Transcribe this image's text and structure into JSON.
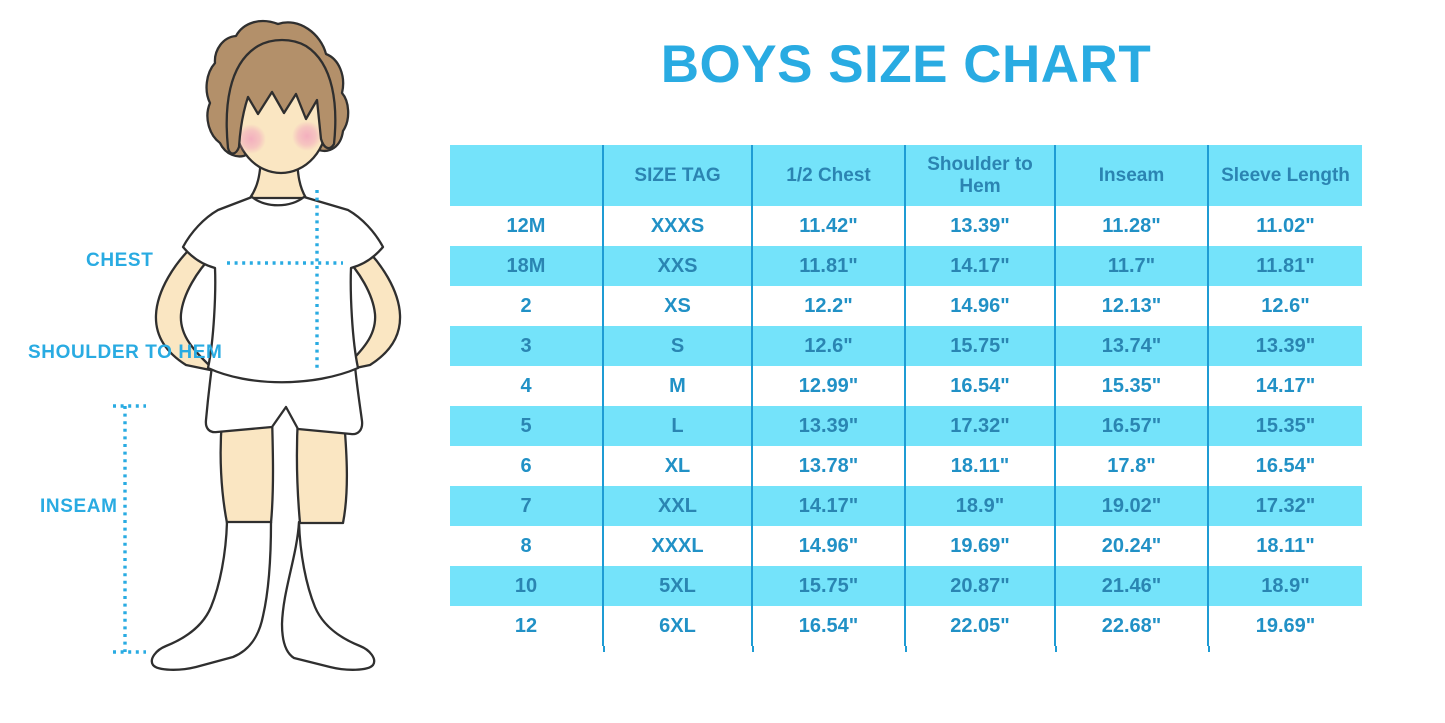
{
  "title": "BOYS SIZE CHART",
  "figure": {
    "illustration": "boy-in-white-tshirt-shorts-and-socks",
    "labels": {
      "chest": "CHEST",
      "shoulder_to_hem": "SHOULDER TO HEM",
      "inseam": "INSEAM"
    }
  },
  "colors": {
    "accent_blue": "#29ABE2",
    "table_stripe_cyan": "#74E3FA",
    "table_line_blue": "#1F9CD4",
    "header_text_blue": "#2B84B2",
    "cell_text_blue": "#2191C6",
    "cell_text_on_cyan": "#2A85B2",
    "skin": "#FAE6C2",
    "hair_brown": "#B3906A",
    "cheek_pink": "#F2A9BE"
  },
  "chart_data": {
    "type": "table",
    "columns": [
      "",
      "SIZE TAG",
      "1/2 Chest",
      "Shoulder to Hem",
      "Inseam",
      "Sleeve Length"
    ],
    "rows": [
      [
        "12M",
        "XXXS",
        "11.42\"",
        "13.39\"",
        "11.28\"",
        "11.02\""
      ],
      [
        "18M",
        "XXS",
        "11.81\"",
        "14.17\"",
        "11.7\"",
        "11.81\""
      ],
      [
        "2",
        "XS",
        "12.2\"",
        "14.96\"",
        "12.13\"",
        "12.6\""
      ],
      [
        "3",
        "S",
        "12.6\"",
        "15.75\"",
        "13.74\"",
        "13.39\""
      ],
      [
        "4",
        "M",
        "12.99\"",
        "16.54\"",
        "15.35\"",
        "14.17\""
      ],
      [
        "5",
        "L",
        "13.39\"",
        "17.32\"",
        "16.57\"",
        "15.35\""
      ],
      [
        "6",
        "XL",
        "13.78\"",
        "18.11\"",
        "17.8\"",
        "16.54\""
      ],
      [
        "7",
        "XXL",
        "14.17\"",
        "18.9\"",
        "19.02\"",
        "17.32\""
      ],
      [
        "8",
        "XXXL",
        "14.96\"",
        "19.69\"",
        "20.24\"",
        "18.11\""
      ],
      [
        "10",
        "5XL",
        "15.75\"",
        "20.87\"",
        "21.46\"",
        "18.9\""
      ],
      [
        "12",
        "6XL",
        "16.54\"",
        "22.05\"",
        "22.68\"",
        "19.69\""
      ]
    ]
  }
}
